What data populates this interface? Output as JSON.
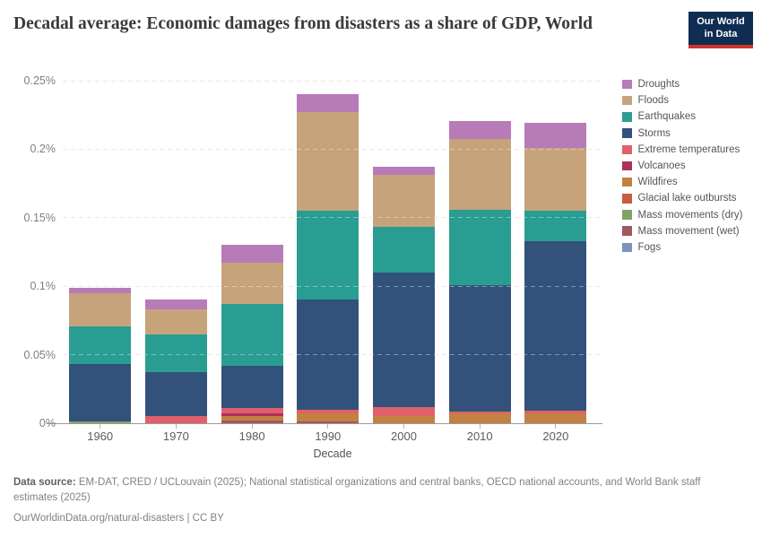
{
  "header": {
    "title": "Decadal average: Economic damages from disasters as a share of GDP, World",
    "logo_line1": "Our World",
    "logo_line2": "in Data",
    "logo_bg": "#0f2d52",
    "logo_accent": "#ce342a"
  },
  "chart_data": {
    "type": "bar",
    "stacked": true,
    "title": "Decadal average: Economic damages from disasters as a share of GDP, World",
    "xlabel": "Decade",
    "ylabel": "",
    "unit": "% of GDP",
    "ylim": [
      0,
      0.25
    ],
    "grid": "dashed horizontal",
    "legend_position": "right",
    "stack_note": "series listed top-to-bottom of stack; render reversed so Fogs is bottom and Droughts is top",
    "categories": [
      "1960",
      "1970",
      "1980",
      "1990",
      "2000",
      "2010",
      "2020"
    ],
    "y_ticks": [
      {
        "value": 0,
        "label": "0%"
      },
      {
        "value": 0.05,
        "label": "0.05%"
      },
      {
        "value": 0.1,
        "label": "0.1%"
      },
      {
        "value": 0.15,
        "label": "0.15%"
      },
      {
        "value": 0.2,
        "label": "0.2%"
      },
      {
        "value": 0.25,
        "label": "0.25%"
      }
    ],
    "series": [
      {
        "name": "Droughts",
        "color": "#b77bb8",
        "values": [
          0.004,
          0.007,
          0.013,
          0.013,
          0.006,
          0.013,
          0.018
        ]
      },
      {
        "name": "Floods",
        "color": "#c6a37b",
        "values": [
          0.024,
          0.018,
          0.03,
          0.072,
          0.038,
          0.052,
          0.046
        ]
      },
      {
        "name": "Earthquakes",
        "color": "#2a9d92",
        "values": [
          0.028,
          0.028,
          0.045,
          0.065,
          0.033,
          0.055,
          0.022
        ]
      },
      {
        "name": "Storms",
        "color": "#32527b",
        "values": [
          0.042,
          0.032,
          0.031,
          0.08,
          0.098,
          0.092,
          0.124
        ]
      },
      {
        "name": "Extreme temperatures",
        "color": "#e0606c",
        "values": [
          0,
          0.005,
          0.004,
          0.003,
          0.007,
          0.001,
          0.002
        ]
      },
      {
        "name": "Volcanoes",
        "color": "#ad2f5e",
        "values": [
          0,
          0,
          0.002,
          0,
          0,
          0,
          0
        ]
      },
      {
        "name": "Wildfires",
        "color": "#c28142",
        "values": [
          0,
          0,
          0.003,
          0.006,
          0.005,
          0.0075,
          0.007
        ]
      },
      {
        "name": "Glacial lake outbursts",
        "color": "#ca5b3d",
        "values": [
          0,
          0,
          0,
          0,
          0,
          0,
          0
        ]
      },
      {
        "name": "Mass movements (dry)",
        "color": "#82a266",
        "values": [
          0.001,
          0,
          0,
          0,
          0,
          0,
          0
        ]
      },
      {
        "name": "Mass movement (wet)",
        "color": "#a1585e",
        "values": [
          0,
          0,
          0.002,
          0.001,
          0,
          0,
          0
        ]
      },
      {
        "name": "Fogs",
        "color": "#7c93bb",
        "values": [
          0,
          0,
          0,
          0,
          0,
          0,
          0
        ]
      }
    ]
  },
  "footer": {
    "data_source_label": "Data source:",
    "data_source_text": "EM-DAT, CRED / UCLouvain (2025); National statistical organizations and central banks, OECD national accounts, and World Bank staff estimates (2025)",
    "url": "OurWorldinData.org/natural-disasters",
    "separator": "|",
    "license": "CC BY"
  }
}
